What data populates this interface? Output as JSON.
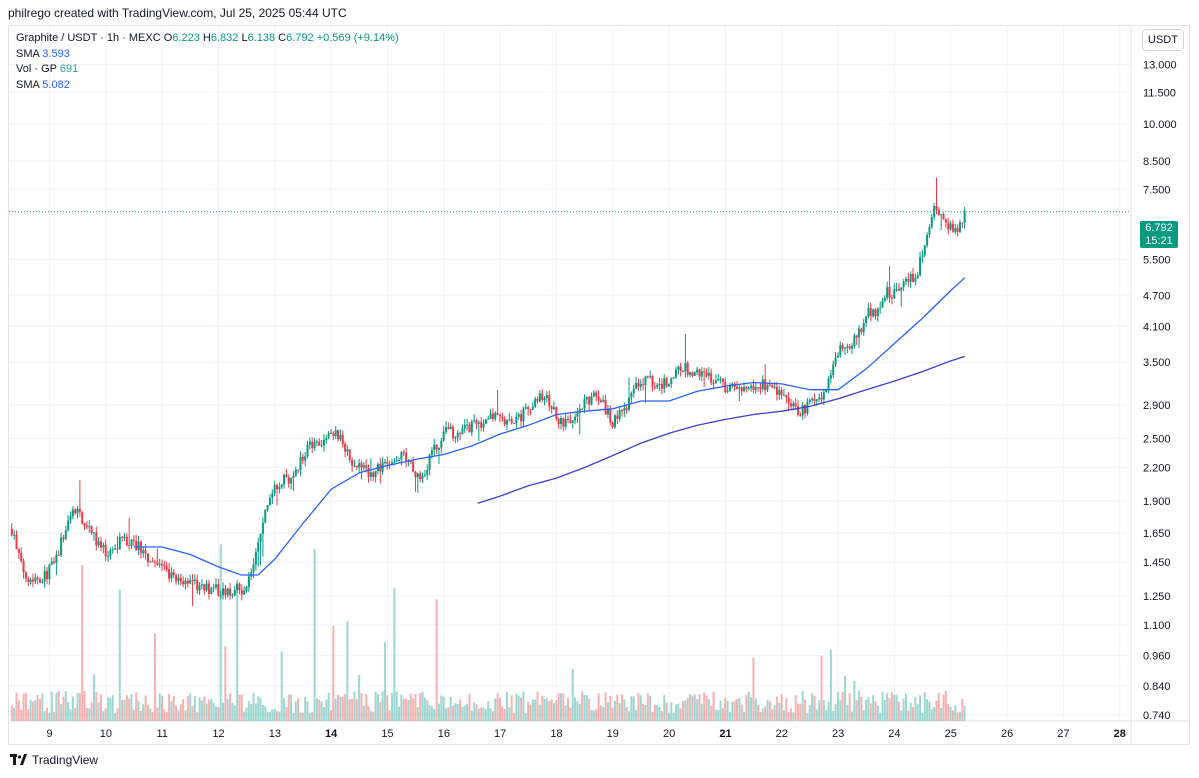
{
  "header": {
    "text": "philrego created with TradingView.com, Jul 25, 2025 05:44 UTC"
  },
  "legend": {
    "symbol": "Graphite / USDT · 1h · MEXC",
    "o_label": "O",
    "o_value": "6.223",
    "h_label": "H",
    "h_value": "6.832",
    "l_label": "L",
    "l_value": "6.138",
    "c_label": "C",
    "c_value": "6.792",
    "change": "+0.569 (+9.14%)",
    "sma1_label": "SMA",
    "sma1_value": "3.593",
    "vol_label": "Vol · GP",
    "vol_value": "691",
    "sma2_label": "SMA",
    "sma2_value": "5.082"
  },
  "unit_button": "USDT",
  "price_tag": {
    "price": "6.792",
    "countdown": "15:21"
  },
  "footer": {
    "brand": "TradingView"
  },
  "colors": {
    "up": "#089981",
    "down": "#f23645",
    "ma": "#2962ff",
    "ma_long": "#3a3fd4",
    "grid": "#f0f3fa"
  },
  "chart_data": {
    "type": "candlestick",
    "y_scale": "log",
    "price_axis_labels": [
      "13.000",
      "11.500",
      "10.000",
      "8.500",
      "7.500",
      "6.792",
      "5.500",
      "4.700",
      "4.100",
      "3.500",
      "2.900",
      "2.500",
      "2.200",
      "1.900",
      "1.650",
      "1.450",
      "1.250",
      "1.100",
      "0.960",
      "0.840",
      "0.740"
    ],
    "price_ticks": [
      13.0,
      11.5,
      10.0,
      8.5,
      7.5,
      5.5,
      4.7,
      4.1,
      3.5,
      2.9,
      2.5,
      2.2,
      1.9,
      1.65,
      1.45,
      1.25,
      1.1,
      0.96,
      0.84,
      0.74
    ],
    "x_tick_labels": [
      "9",
      "10",
      "11",
      "12",
      "13",
      "14",
      "15",
      "16",
      "17",
      "18",
      "19",
      "20",
      "21",
      "22",
      "23",
      "24",
      "25",
      "26",
      "27",
      "28"
    ],
    "x_tick_days": [
      9,
      10,
      11,
      12,
      13,
      14,
      15,
      16,
      17,
      18,
      19,
      20,
      21,
      22,
      23,
      24,
      25,
      26,
      27,
      28
    ],
    "bold_ticks": [
      "14",
      "21",
      "28"
    ],
    "x_range_days": [
      8.28,
      28.2
    ],
    "y_range": [
      0.72,
      15.4
    ],
    "last_price": 6.792,
    "price_path": [
      [
        8.33,
        1.68
      ],
      [
        8.5,
        1.42
      ],
      [
        8.65,
        1.35
      ],
      [
        8.9,
        1.36
      ],
      [
        9.1,
        1.45
      ],
      [
        9.3,
        1.7
      ],
      [
        9.45,
        1.85
      ],
      [
        9.6,
        1.75
      ],
      [
        9.8,
        1.6
      ],
      [
        10.0,
        1.5
      ],
      [
        10.3,
        1.6
      ],
      [
        10.6,
        1.55
      ],
      [
        10.8,
        1.45
      ],
      [
        11.0,
        1.4
      ],
      [
        11.2,
        1.35
      ],
      [
        11.5,
        1.34
      ],
      [
        11.7,
        1.28
      ],
      [
        11.9,
        1.3
      ],
      [
        12.1,
        1.27
      ],
      [
        12.3,
        1.28
      ],
      [
        12.5,
        1.3
      ],
      [
        12.7,
        1.55
      ],
      [
        12.85,
        1.85
      ],
      [
        13.0,
        2.05
      ],
      [
        13.3,
        2.1
      ],
      [
        13.6,
        2.45
      ],
      [
        13.9,
        2.5
      ],
      [
        14.1,
        2.55
      ],
      [
        14.4,
        2.25
      ],
      [
        14.7,
        2.15
      ],
      [
        15.0,
        2.25
      ],
      [
        15.3,
        2.3
      ],
      [
        15.6,
        2.1
      ],
      [
        15.8,
        2.35
      ],
      [
        16.0,
        2.55
      ],
      [
        16.3,
        2.6
      ],
      [
        16.6,
        2.65
      ],
      [
        16.9,
        2.75
      ],
      [
        17.2,
        2.65
      ],
      [
        17.5,
        2.85
      ],
      [
        17.8,
        3.05
      ],
      [
        18.0,
        2.75
      ],
      [
        18.2,
        2.65
      ],
      [
        18.4,
        2.8
      ],
      [
        18.6,
        3.0
      ],
      [
        18.8,
        2.95
      ],
      [
        19.0,
        2.7
      ],
      [
        19.2,
        2.85
      ],
      [
        19.4,
        3.15
      ],
      [
        19.6,
        3.3
      ],
      [
        19.8,
        3.15
      ],
      [
        20.0,
        3.25
      ],
      [
        20.2,
        3.45
      ],
      [
        20.5,
        3.3
      ],
      [
        20.8,
        3.25
      ],
      [
        21.0,
        3.15
      ],
      [
        21.3,
        3.12
      ],
      [
        21.6,
        3.2
      ],
      [
        21.9,
        3.1
      ],
      [
        22.1,
        2.9
      ],
      [
        22.3,
        2.8
      ],
      [
        22.5,
        2.9
      ],
      [
        22.7,
        3.0
      ],
      [
        22.85,
        3.3
      ],
      [
        23.0,
        3.7
      ],
      [
        23.2,
        3.8
      ],
      [
        23.4,
        4.0
      ],
      [
        23.55,
        4.4
      ],
      [
        23.7,
        4.35
      ],
      [
        23.85,
        4.8
      ],
      [
        24.0,
        4.7
      ],
      [
        24.2,
        5.0
      ],
      [
        24.4,
        5.2
      ],
      [
        24.55,
        5.9
      ],
      [
        24.7,
        6.8
      ],
      [
        24.85,
        6.5
      ],
      [
        25.0,
        6.3
      ],
      [
        25.15,
        6.4
      ],
      [
        25.25,
        6.79
      ]
    ],
    "sma_fast": [
      [
        10.5,
        1.55
      ],
      [
        11.0,
        1.55
      ],
      [
        11.5,
        1.5
      ],
      [
        12.0,
        1.42
      ],
      [
        12.4,
        1.37
      ],
      [
        12.7,
        1.37
      ],
      [
        13.0,
        1.47
      ],
      [
        13.5,
        1.72
      ],
      [
        14.0,
        2.0
      ],
      [
        14.5,
        2.15
      ],
      [
        15.0,
        2.22
      ],
      [
        15.5,
        2.28
      ],
      [
        16.0,
        2.33
      ],
      [
        16.5,
        2.42
      ],
      [
        17.0,
        2.55
      ],
      [
        17.5,
        2.65
      ],
      [
        18.0,
        2.78
      ],
      [
        18.5,
        2.82
      ],
      [
        19.0,
        2.85
      ],
      [
        19.5,
        2.95
      ],
      [
        20.0,
        2.95
      ],
      [
        20.5,
        3.08
      ],
      [
        21.0,
        3.15
      ],
      [
        21.5,
        3.2
      ],
      [
        22.0,
        3.18
      ],
      [
        22.5,
        3.1
      ],
      [
        23.0,
        3.1
      ],
      [
        23.5,
        3.4
      ],
      [
        24.0,
        3.8
      ],
      [
        24.5,
        4.25
      ],
      [
        25.0,
        4.8
      ],
      [
        25.25,
        5.08
      ]
    ],
    "sma_slow": [
      [
        16.6,
        1.88
      ],
      [
        17.0,
        1.94
      ],
      [
        17.5,
        2.03
      ],
      [
        18.0,
        2.1
      ],
      [
        18.5,
        2.2
      ],
      [
        19.0,
        2.32
      ],
      [
        19.5,
        2.45
      ],
      [
        20.0,
        2.56
      ],
      [
        20.5,
        2.65
      ],
      [
        21.0,
        2.72
      ],
      [
        21.5,
        2.78
      ],
      [
        22.0,
        2.82
      ],
      [
        22.5,
        2.88
      ],
      [
        23.0,
        2.98
      ],
      [
        23.5,
        3.1
      ],
      [
        24.0,
        3.22
      ],
      [
        24.5,
        3.36
      ],
      [
        25.0,
        3.52
      ],
      [
        25.25,
        3.59
      ]
    ]
  }
}
